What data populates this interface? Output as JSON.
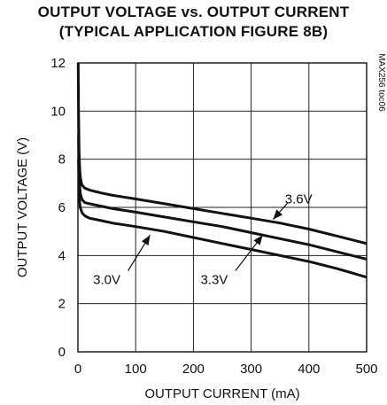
{
  "chart_data": {
    "type": "line",
    "title": "OUTPUT VOLTAGE vs. OUTPUT CURRENT",
    "subtitle": "(TYPICAL APPLICATION FIGURE 8B)",
    "xlabel": "OUTPUT CURRENT (mA)",
    "ylabel": "OUTPUT VOLTAGE (V)",
    "xlim": [
      0,
      500
    ],
    "ylim": [
      0,
      12
    ],
    "xticks": [
      0,
      100,
      200,
      300,
      400,
      500
    ],
    "yticks": [
      0,
      2,
      4,
      6,
      8,
      10,
      12
    ],
    "grid": true,
    "figure_id": "MAX256 toc06",
    "series": [
      {
        "name": "3.6V",
        "x": [
          0.5,
          1,
          2,
          3,
          4,
          6,
          8,
          12,
          20,
          40,
          60,
          100,
          150,
          200,
          250,
          300,
          350,
          400,
          450,
          500
        ],
        "y": [
          12,
          10,
          8.3,
          7.6,
          7.3,
          7.0,
          6.9,
          6.8,
          6.72,
          6.6,
          6.5,
          6.35,
          6.15,
          5.95,
          5.75,
          5.55,
          5.35,
          5.1,
          4.8,
          4.5
        ]
      },
      {
        "name": "3.3V",
        "x": [
          1,
          2,
          3,
          4,
          6,
          8,
          12,
          20,
          40,
          60,
          100,
          150,
          200,
          250,
          300,
          350,
          400,
          450,
          500
        ],
        "y": [
          9,
          7.6,
          6.9,
          6.6,
          6.4,
          6.3,
          6.2,
          6.15,
          6.05,
          5.95,
          5.8,
          5.6,
          5.4,
          5.2,
          4.95,
          4.7,
          4.45,
          4.15,
          3.85
        ]
      },
      {
        "name": "3.0V",
        "x": [
          1,
          2,
          3,
          4,
          6,
          8,
          12,
          20,
          40,
          60,
          100,
          150,
          200,
          250,
          300,
          350,
          400,
          450,
          500
        ],
        "y": [
          8,
          6.8,
          6.2,
          6.0,
          5.85,
          5.75,
          5.65,
          5.55,
          5.45,
          5.35,
          5.2,
          5.0,
          4.75,
          4.5,
          4.25,
          4.0,
          3.75,
          3.45,
          3.1
        ]
      }
    ],
    "annotations": [
      {
        "text": "3.6V",
        "label_x": 370,
        "label_y": 6.35,
        "arrow_to": [
          338,
          5.5
        ]
      },
      {
        "text": "3.3V",
        "label_x": 236,
        "label_y": 3.0,
        "arrow_to": [
          320,
          4.85
        ]
      },
      {
        "text": "3.0V",
        "label_x": 50,
        "label_y": 3.0,
        "arrow_to": [
          125,
          4.85
        ]
      }
    ]
  }
}
